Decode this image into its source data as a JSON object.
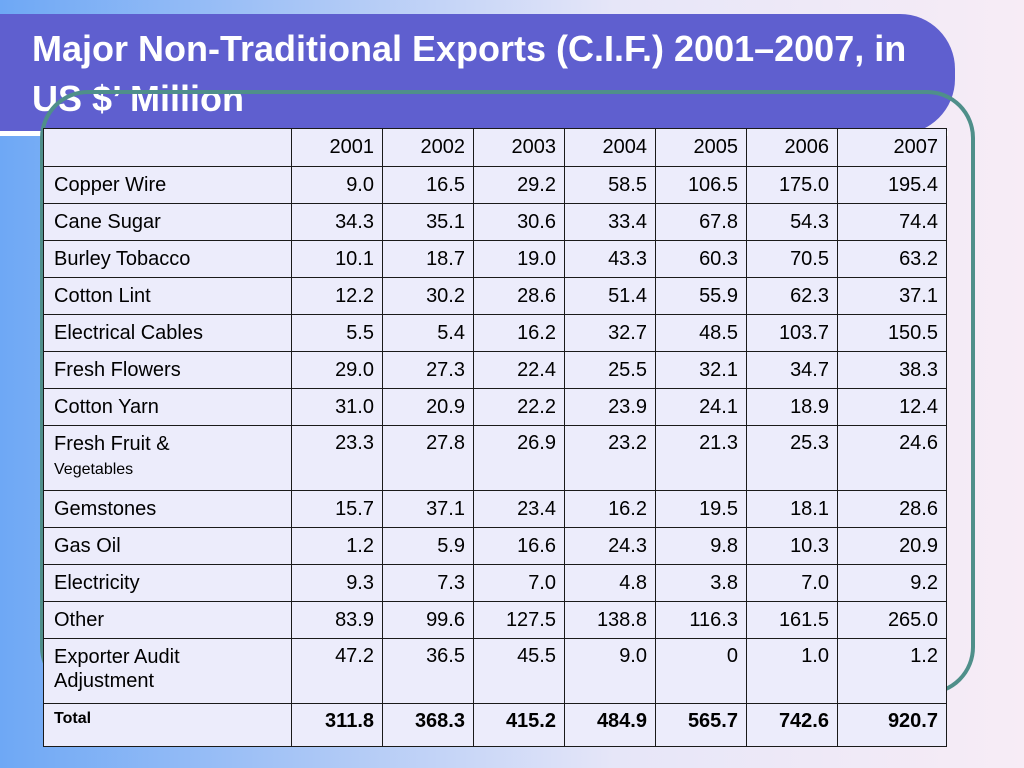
{
  "slide": {
    "title": "Major Non-Traditional Exports (C.I.F.) 2001–2007, in US $’ Million"
  },
  "table": {
    "years": [
      "2001",
      "2002",
      "2003",
      "2004",
      "2005",
      "2006",
      "2007"
    ],
    "rows": [
      {
        "label": "Copper Wire",
        "values": [
          "9.0",
          "16.5",
          "29.2",
          "58.5",
          "106.5",
          "175.0",
          "195.4"
        ]
      },
      {
        "label": "Cane Sugar",
        "values": [
          "34.3",
          "35.1",
          "30.6",
          "33.4",
          "67.8",
          "54.3",
          "74.4"
        ]
      },
      {
        "label": "Burley Tobacco",
        "values": [
          "10.1",
          "18.7",
          "19.0",
          "43.3",
          "60.3",
          "70.5",
          "63.2"
        ]
      },
      {
        "label": "Cotton Lint",
        "values": [
          "12.2",
          "30.2",
          "28.6",
          "51.4",
          "55.9",
          "62.3",
          "37.1"
        ]
      },
      {
        "label": "Electrical Cables",
        "values": [
          "5.5",
          "5.4",
          "16.2",
          "32.7",
          "48.5",
          "103.7",
          "150.5"
        ]
      },
      {
        "label": "Fresh Flowers",
        "values": [
          "29.0",
          "27.3",
          "22.4",
          "25.5",
          "32.1",
          "34.7",
          "38.3"
        ]
      },
      {
        "label": "Cotton Yarn",
        "values": [
          "31.0",
          "20.9",
          "22.2",
          "23.9",
          "24.1",
          "18.9",
          "12.4"
        ]
      },
      {
        "label_line1": "Fresh Fruit &",
        "label_line2": "Vegetables",
        "values": [
          "23.3",
          "27.8",
          "26.9",
          "23.2",
          "21.3",
          "25.3",
          "24.6"
        ]
      },
      {
        "label": "Gemstones",
        "values": [
          "15.7",
          "37.1",
          "23.4",
          "16.2",
          "19.5",
          "18.1",
          "28.6"
        ]
      },
      {
        "label": "Gas Oil",
        "values": [
          "1.2",
          "5.9",
          "16.6",
          "24.3",
          "9.8",
          "10.3",
          "20.9"
        ]
      },
      {
        "label": "Electricity",
        "values": [
          "9.3",
          "7.3",
          "7.0",
          "4.8",
          "3.8",
          "7.0",
          "9.2"
        ]
      },
      {
        "label": "Other",
        "values": [
          "83.9",
          "99.6",
          "127.5",
          "138.8",
          "116.3",
          "161.5",
          "265.0"
        ]
      },
      {
        "label_line1": "Exporter Audit",
        "label_line2": "Adjustment",
        "values": [
          "47.2",
          "36.5",
          "45.5",
          "9.0",
          "0",
          "1.0",
          "1.2"
        ]
      }
    ],
    "total": {
      "label": "Total",
      "values": [
        "311.8",
        "368.3",
        "415.2",
        "484.9",
        "565.7",
        "742.6",
        "920.7"
      ]
    }
  }
}
